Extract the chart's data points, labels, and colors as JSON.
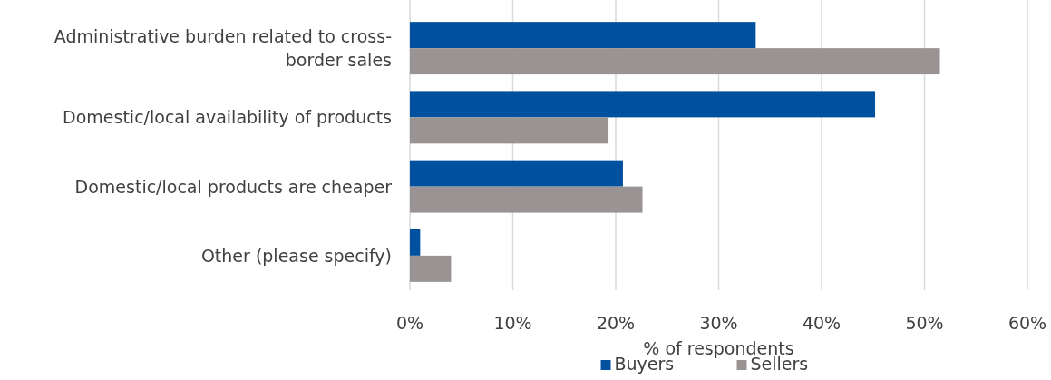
{
  "chart_data": {
    "type": "bar",
    "orientation": "horizontal",
    "categories": [
      "Administrative burden related to cross-border sales",
      "Domestic/local availability of products",
      "Domestic/local products are cheaper",
      "Other (please specify)"
    ],
    "series": [
      {
        "name": "Buyers",
        "color": "#0050a0",
        "values": [
          33.6,
          45.2,
          20.7,
          1.0
        ]
      },
      {
        "name": "Sellers",
        "color": "#999493",
        "values": [
          51.5,
          19.3,
          22.6,
          4.0
        ]
      }
    ],
    "xlim": [
      0,
      60
    ],
    "xticks": [
      {
        "value": 0,
        "label": "0%"
      },
      {
        "value": 10,
        "label": "10%"
      },
      {
        "value": 20,
        "label": "20%"
      },
      {
        "value": 30,
        "label": "30%"
      },
      {
        "value": 40,
        "label": "40%"
      },
      {
        "value": 50,
        "label": "50%"
      },
      {
        "value": 60,
        "label": "60%"
      }
    ],
    "xlabel": "% of respondents",
    "grid": "x",
    "legend": "bottom"
  }
}
